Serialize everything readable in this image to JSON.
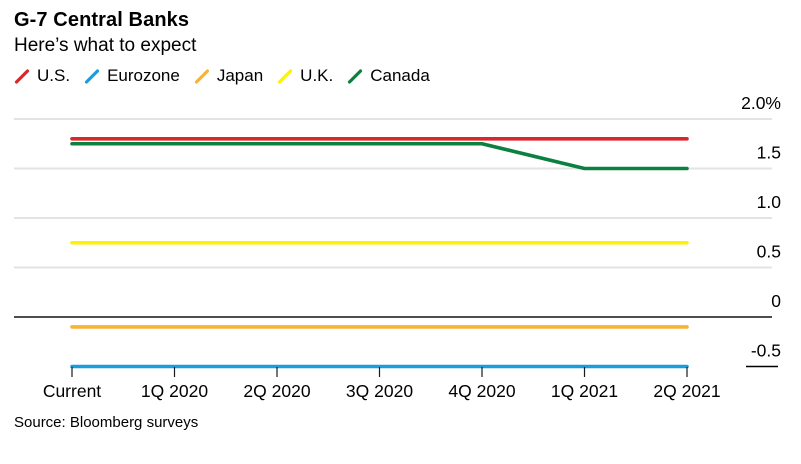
{
  "header": {
    "title": "G-7 Central Banks",
    "subtitle": "Here’s what to expect"
  },
  "footer": {
    "source": "Source: Bloomberg surveys"
  },
  "chart_data": {
    "type": "line",
    "title": "G-7 Central Banks",
    "subtitle": "Here’s what to expect",
    "categories": [
      "Current",
      "1Q 2020",
      "2Q 2020",
      "3Q 2020",
      "4Q 2020",
      "1Q 2021",
      "2Q 2021"
    ],
    "series": [
      {
        "name": "U.S.",
        "color": "#d8282c",
        "values": [
          1.8,
          1.8,
          1.8,
          1.8,
          1.8,
          1.8,
          1.8
        ]
      },
      {
        "name": "Eurozone",
        "color": "#1b9ddb",
        "values": [
          -0.5,
          -0.5,
          -0.5,
          -0.5,
          -0.5,
          -0.5,
          -0.5
        ]
      },
      {
        "name": "Japan",
        "color": "#f9b234",
        "values": [
          -0.1,
          -0.1,
          -0.1,
          -0.1,
          -0.1,
          -0.1,
          -0.1
        ]
      },
      {
        "name": "U.K.",
        "color": "#fef200",
        "values": [
          0.75,
          0.75,
          0.75,
          0.75,
          0.75,
          0.75,
          0.75
        ]
      },
      {
        "name": "Canada",
        "color": "#0b8040",
        "values": [
          1.75,
          1.75,
          1.75,
          1.75,
          1.75,
          1.5,
          1.5
        ]
      }
    ],
    "y_axis": {
      "unit": "percent",
      "ticks": [
        {
          "label": "2.0%",
          "value": 2.0,
          "grid": "full"
        },
        {
          "label": "1.5",
          "value": 1.5,
          "grid": "full"
        },
        {
          "label": "1.0",
          "value": 1.0,
          "grid": "full"
        },
        {
          "label": "0.5",
          "value": 0.5,
          "grid": "full"
        },
        {
          "label": "0",
          "value": 0,
          "grid": "axis"
        },
        {
          "label": "-0.5",
          "value": -0.5,
          "grid": "short"
        }
      ],
      "range": [
        -0.7,
        2.2
      ],
      "label_side": "right"
    },
    "x_axis": {
      "tick_marks": true,
      "label_side": "bottom"
    },
    "grid": "horizontal",
    "legend_position": "top-left",
    "styles": {
      "gridline_color": "#e3e3e3",
      "zero_line_color": "#4d4d4d",
      "tick_color": "#1a1a1a",
      "label_color": "#000000"
    }
  }
}
